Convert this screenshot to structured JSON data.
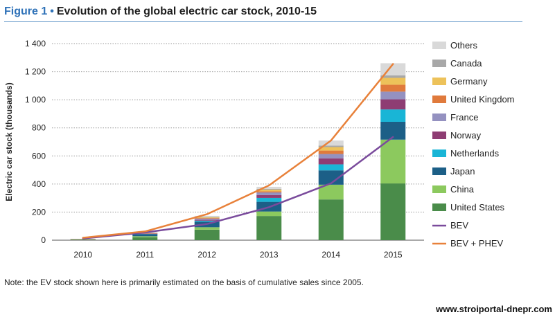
{
  "figure": {
    "label": "Figure 1",
    "bullet": "•",
    "title": "Evolution of the global electric car stock, 2010-15"
  },
  "note": "Note: the EV stock shown here is primarily estimated on the basis of cumulative sales since 2005.",
  "watermark": "www.stroiportal-dnepr.com",
  "colors": {
    "title_accent": "#2f72b8",
    "gridline": "#9a9a9a"
  },
  "chart_data": {
    "type": "bar",
    "stacked": true,
    "ylabel": "Electric car stock (thousands)",
    "xlabel": "",
    "ylim": [
      0,
      1400
    ],
    "yticks": [
      0,
      200,
      400,
      600,
      800,
      1000,
      1200,
      1400
    ],
    "ytick_labels": [
      "0",
      "200",
      "400",
      "600",
      "800",
      "1 000",
      "1 200",
      "1 400"
    ],
    "grid": true,
    "legend_position": "right",
    "categories": [
      "2010",
      "2011",
      "2012",
      "2013",
      "2014",
      "2015"
    ],
    "series": [
      {
        "name": "United States",
        "color": "#4a8c4a",
        "values": [
          4,
          21,
          75,
          172,
          290,
          404
        ]
      },
      {
        "name": "China",
        "color": "#8cc95e",
        "values": [
          1,
          7,
          17,
          32,
          105,
          312
        ]
      },
      {
        "name": "Japan",
        "color": "#1c5f87",
        "values": [
          2,
          15,
          40,
          69,
          102,
          127
        ]
      },
      {
        "name": "Netherlands",
        "color": "#19b5d6",
        "values": [
          0,
          1,
          7,
          28,
          43,
          88
        ]
      },
      {
        "name": "Norway",
        "color": "#8e3d73",
        "values": [
          1,
          2,
          6,
          20,
          43,
          72
        ]
      },
      {
        "name": "France",
        "color": "#9491c0",
        "values": [
          0,
          3,
          9,
          19,
          31,
          55
        ]
      },
      {
        "name": "United Kingdom",
        "color": "#e07a3c",
        "values": [
          1,
          1,
          4,
          8,
          24,
          49
        ]
      },
      {
        "name": "Germany",
        "color": "#edc25a",
        "values": [
          0,
          2,
          5,
          12,
          25,
          49
        ]
      },
      {
        "name": "Canada",
        "color": "#a8a8a8",
        "values": [
          0,
          1,
          2,
          5,
          11,
          18
        ]
      },
      {
        "name": "Others",
        "color": "#d9d9d9",
        "values": [
          1,
          3,
          8,
          15,
          36,
          86
        ]
      }
    ],
    "lines": [
      {
        "name": "BEV",
        "color": "#7a4b9c",
        "values": [
          12,
          55,
          115,
          235,
          405,
          735
        ]
      },
      {
        "name": "BEV + PHEV",
        "color": "#e8813a",
        "values": [
          17,
          62,
          185,
          390,
          710,
          1255
        ]
      }
    ]
  }
}
